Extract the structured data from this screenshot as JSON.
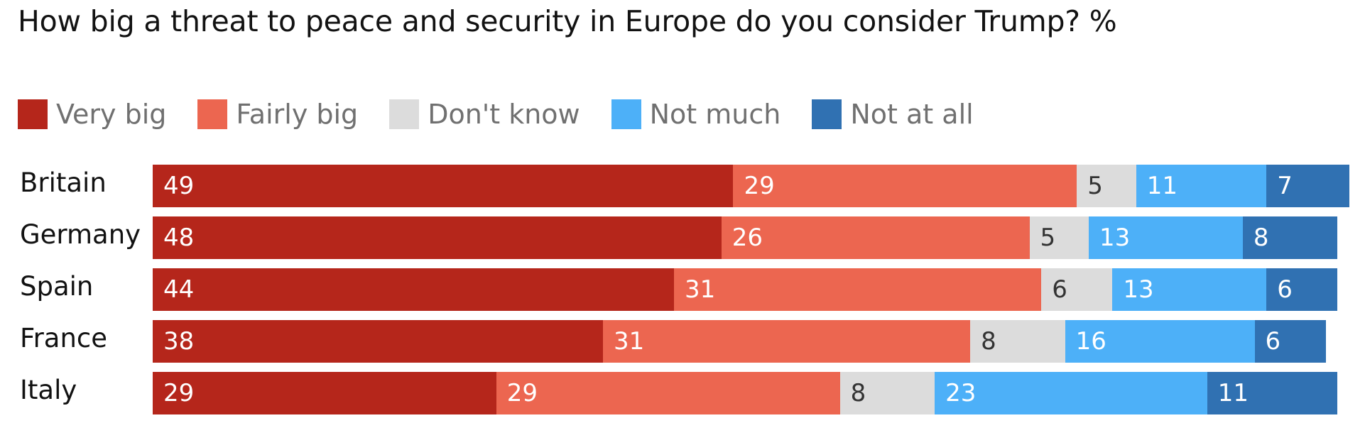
{
  "title": "How big a threat to peace and security in Europe do you consider Trump? %",
  "legend": [
    {
      "label": "Very big",
      "color": "#b5261b"
    },
    {
      "label": "Fairly big",
      "color": "#ec6650"
    },
    {
      "label": "Don't know",
      "color": "#dcdcdc"
    },
    {
      "label": "Not much",
      "color": "#4db0f8"
    },
    {
      "label": "Not at all",
      "color": "#3071b2"
    }
  ],
  "chart_data": {
    "type": "bar",
    "orientation": "horizontal",
    "stacked": true,
    "title": "How big a threat to peace and security in Europe do you consider Trump? %",
    "categories": [
      "Britain",
      "Germany",
      "Spain",
      "France",
      "Italy"
    ],
    "series": [
      {
        "name": "Very big",
        "color": "#b5261b",
        "label_color": "#ffffff",
        "values": [
          49,
          48,
          44,
          38,
          29
        ]
      },
      {
        "name": "Fairly big",
        "color": "#ec6650",
        "label_color": "#ffffff",
        "values": [
          29,
          26,
          31,
          31,
          29
        ]
      },
      {
        "name": "Don't know",
        "color": "#dcdcdc",
        "label_color": "#333333",
        "values": [
          5,
          5,
          6,
          8,
          8
        ]
      },
      {
        "name": "Not much",
        "color": "#4db0f8",
        "label_color": "#ffffff",
        "values": [
          11,
          13,
          13,
          16,
          23
        ]
      },
      {
        "name": "Not at all",
        "color": "#3071b2",
        "label_color": "#ffffff",
        "values": [
          7,
          8,
          6,
          6,
          11
        ]
      }
    ],
    "xlim": [
      0,
      101
    ],
    "xlabel": "",
    "ylabel": "",
    "grid": false,
    "legend_position": "top-left"
  }
}
